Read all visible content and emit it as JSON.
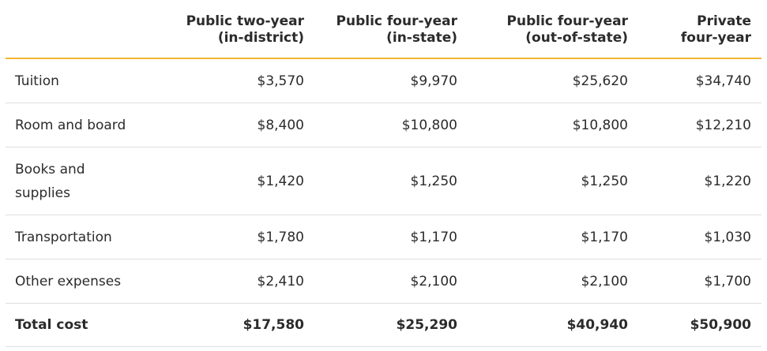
{
  "table": {
    "headers": [
      {
        "line1": "",
        "line2": ""
      },
      {
        "line1": "Public two-year",
        "line2": "(in-district)"
      },
      {
        "line1": "Public four-year",
        "line2": "(in-state)"
      },
      {
        "line1": "Public four-year",
        "line2": "(out-of-state)"
      },
      {
        "line1": "Private",
        "line2": "four-year"
      }
    ],
    "rows": [
      {
        "label": "Tuition",
        "values": [
          "$3,570",
          "$9,970",
          "$25,620",
          "$34,740"
        ]
      },
      {
        "label": "Room and board",
        "values": [
          "$8,400",
          "$10,800",
          "$10,800",
          "$12,210"
        ]
      },
      {
        "label_line1": "Books and",
        "label_line2": "supplies",
        "values": [
          "$1,420",
          "$1,250",
          "$1,250",
          "$1,220"
        ]
      },
      {
        "label": "Transportation",
        "values": [
          "$1,780",
          "$1,170",
          "$1,170",
          "$1,030"
        ]
      },
      {
        "label": "Other expenses",
        "values": [
          "$2,410",
          "$2,100",
          "$2,100",
          "$1,700"
        ]
      }
    ],
    "total": {
      "label": "Total cost",
      "values": [
        "$17,580",
        "$25,290",
        "$40,940",
        "$50,900"
      ]
    }
  },
  "colors": {
    "header_rule": "#f2b632",
    "row_rule": "#dedede",
    "text": "#2b2b2b"
  }
}
